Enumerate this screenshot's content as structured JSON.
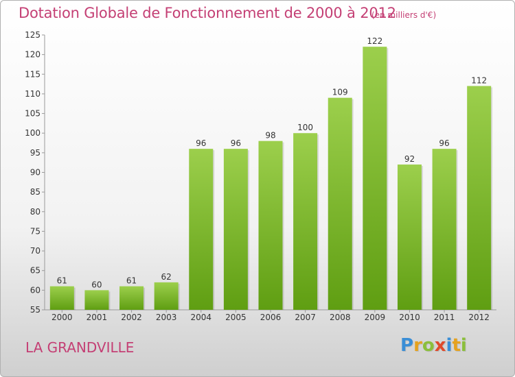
{
  "header": {
    "title": "Dotation Globale de Fonctionnement de 2000 à 2012",
    "unit_note": "(en milliers d'€)"
  },
  "footer": {
    "commune": "LA GRANDVILLE",
    "logo_text": "Proxiti"
  },
  "colors": {
    "title": "#c43f74",
    "bar_top": "#9ccf4c",
    "bar_bottom": "#5f9e12",
    "logo_letters": [
      "#3a8ed6",
      "#e6a21e",
      "#8bbf3b",
      "#e04a2a",
      "#3a8ed6",
      "#e6a21e",
      "#8bbf3b"
    ]
  },
  "chart_data": {
    "type": "bar",
    "categories": [
      "2000",
      "2001",
      "2002",
      "2003",
      "2004",
      "2005",
      "2006",
      "2007",
      "2008",
      "2009",
      "2010",
      "2011",
      "2012"
    ],
    "values": [
      61,
      60,
      61,
      62,
      96,
      96,
      98,
      100,
      109,
      122,
      92,
      96,
      112
    ],
    "ylim": [
      55,
      125
    ],
    "yticks": [
      55,
      60,
      65,
      70,
      75,
      80,
      85,
      90,
      95,
      100,
      105,
      110,
      115,
      120,
      125
    ],
    "grid": false,
    "data_labels": true
  }
}
